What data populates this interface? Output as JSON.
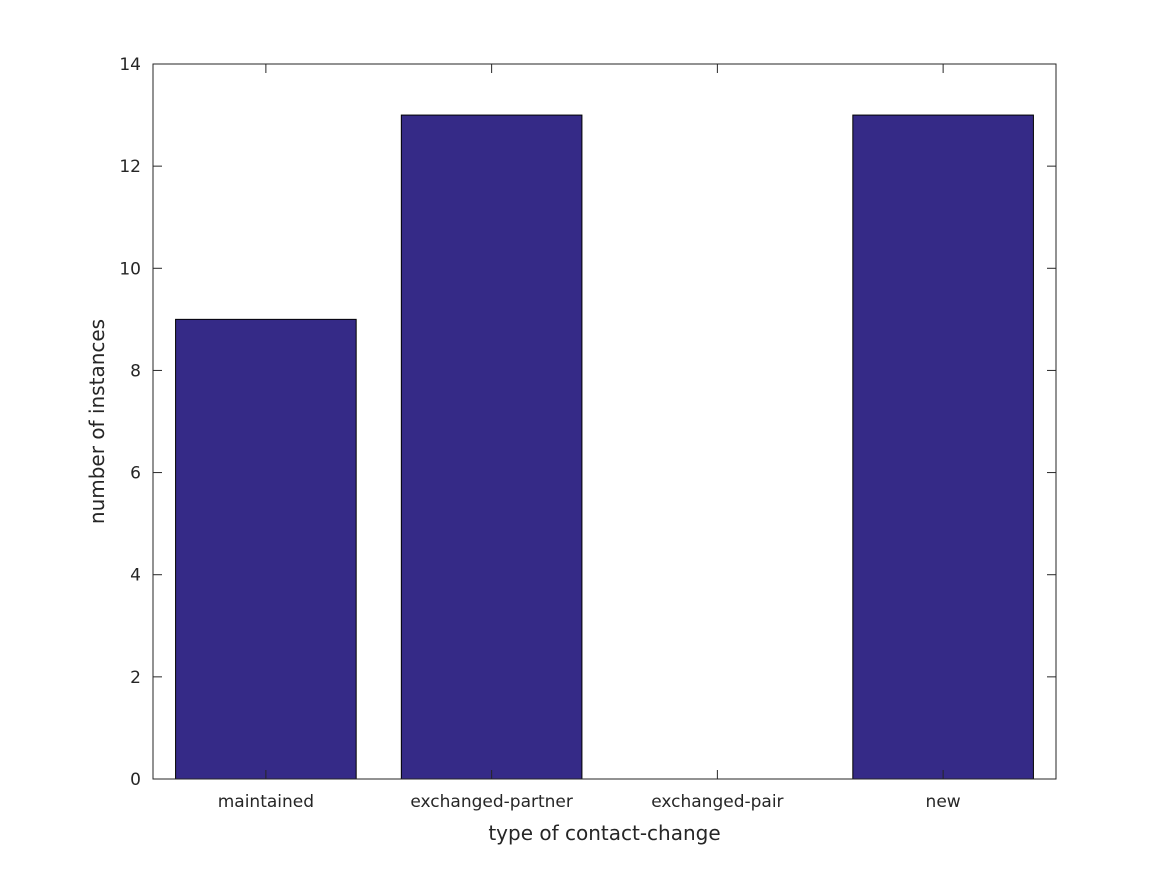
{
  "chart_data": {
    "type": "bar",
    "title": "",
    "xlabel": "type of contact-change",
    "ylabel": "number of instances",
    "categories": [
      "maintained",
      "exchanged-partner",
      "exchanged-pair",
      "new"
    ],
    "values": [
      9,
      13,
      0,
      13
    ],
    "ylim": [
      0,
      14
    ],
    "yticks": [
      0,
      2,
      4,
      6,
      8,
      10,
      12,
      14
    ],
    "grid": false,
    "bar_color": "#352a87",
    "edge_color": "#000000"
  }
}
